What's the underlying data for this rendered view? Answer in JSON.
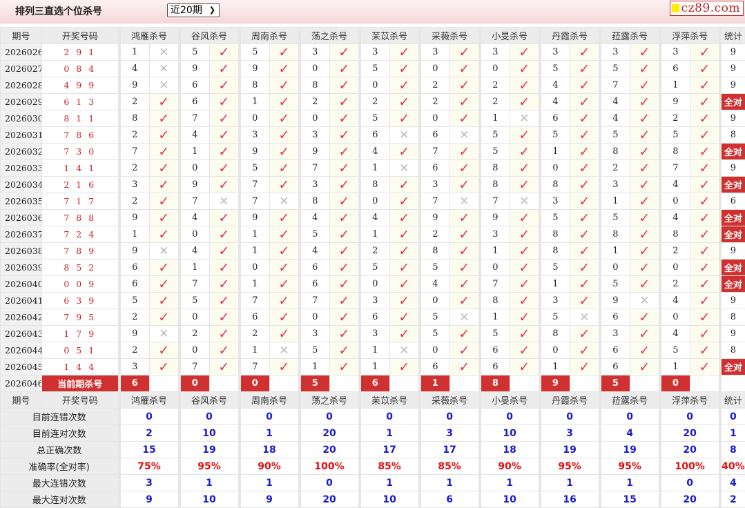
{
  "header": {
    "title": "排列三直选个位杀号",
    "period_select": "近20期",
    "logo": "cz89.com"
  },
  "columns": {
    "issue": "期号",
    "draw": "开奖号码",
    "predictors": [
      "鸿雁杀号",
      "谷风杀号",
      "周南杀号",
      "荡之杀号",
      "苿苡杀号",
      "采薇杀号",
      "小旻杀号",
      "丹霞杀号",
      "菈露杀号",
      "浮萍杀号"
    ],
    "stat": "统计"
  },
  "marks": {
    "hit": "✓",
    "miss": "✕",
    "hit_color": "#e8324a",
    "miss_color": "#bbbbbb"
  },
  "rows": [
    {
      "issue": "2026026",
      "draw": "2 9 1",
      "kills": [
        1,
        5,
        5,
        3,
        3,
        3,
        3,
        3,
        3,
        3
      ],
      "hits": "0111111111",
      "stat": "9"
    },
    {
      "issue": "2026027",
      "draw": "0 8 4",
      "kills": [
        4,
        9,
        9,
        0,
        5,
        0,
        0,
        5,
        5,
        6
      ],
      "hits": "0111111111",
      "stat": "9"
    },
    {
      "issue": "2026028",
      "draw": "4 9 9",
      "kills": [
        9,
        6,
        8,
        8,
        0,
        2,
        2,
        4,
        7,
        1
      ],
      "hits": "0111111111",
      "stat": "9"
    },
    {
      "issue": "2026029",
      "draw": "6 1 3",
      "kills": [
        2,
        6,
        1,
        2,
        2,
        2,
        2,
        4,
        4,
        9
      ],
      "hits": "1111111111",
      "stat": "全对"
    },
    {
      "issue": "2026030",
      "draw": "8 1 1",
      "kills": [
        8,
        7,
        0,
        0,
        5,
        0,
        1,
        6,
        4,
        2
      ],
      "hits": "1111110111",
      "stat": "9"
    },
    {
      "issue": "2026031",
      "draw": "7 8 6",
      "kills": [
        2,
        4,
        3,
        3,
        6,
        6,
        5,
        5,
        5,
        5
      ],
      "hits": "1111001111",
      "stat": "8"
    },
    {
      "issue": "2026032",
      "draw": "7 3 0",
      "kills": [
        7,
        1,
        9,
        9,
        4,
        7,
        5,
        1,
        8,
        8
      ],
      "hits": "1111111111",
      "stat": "全对"
    },
    {
      "issue": "2026033",
      "draw": "1 4 1",
      "kills": [
        2,
        0,
        5,
        7,
        1,
        6,
        8,
        0,
        2,
        7
      ],
      "hits": "1111011111",
      "stat": "9"
    },
    {
      "issue": "2026034",
      "draw": "2 1 6",
      "kills": [
        3,
        9,
        7,
        3,
        8,
        3,
        8,
        8,
        3,
        4
      ],
      "hits": "1111111111",
      "stat": "全对"
    },
    {
      "issue": "2026035",
      "draw": "7 1 7",
      "kills": [
        2,
        7,
        7,
        8,
        0,
        7,
        7,
        3,
        1,
        0
      ],
      "hits": "1001100111",
      "stat": "6"
    },
    {
      "issue": "2026036",
      "draw": "7 8 8",
      "kills": [
        9,
        4,
        9,
        4,
        4,
        9,
        9,
        5,
        5,
        4
      ],
      "hits": "1111111111",
      "stat": "全对"
    },
    {
      "issue": "2026037",
      "draw": "7 2 4",
      "kills": [
        1,
        0,
        1,
        5,
        1,
        2,
        3,
        8,
        8,
        8
      ],
      "hits": "1111111111",
      "stat": "全对"
    },
    {
      "issue": "2026038",
      "draw": "7 8 9",
      "kills": [
        9,
        4,
        1,
        4,
        2,
        8,
        1,
        8,
        1,
        2
      ],
      "hits": "0111111111",
      "stat": "9"
    },
    {
      "issue": "2026039",
      "draw": "8 5 2",
      "kills": [
        6,
        1,
        0,
        6,
        5,
        5,
        0,
        5,
        0,
        0
      ],
      "hits": "1111111111",
      "stat": "全对"
    },
    {
      "issue": "2026040",
      "draw": "0 0 9",
      "kills": [
        6,
        7,
        1,
        6,
        0,
        4,
        7,
        1,
        5,
        2
      ],
      "hits": "1111111111",
      "stat": "全对"
    },
    {
      "issue": "2026041",
      "draw": "6 3 9",
      "kills": [
        5,
        5,
        7,
        7,
        3,
        0,
        8,
        3,
        9,
        4
      ],
      "hits": "1111111101",
      "stat": "9"
    },
    {
      "issue": "2026042",
      "draw": "7 9 5",
      "kills": [
        2,
        0,
        6,
        0,
        6,
        5,
        1,
        5,
        6,
        0
      ],
      "hits": "1111101011",
      "stat": "8"
    },
    {
      "issue": "2026043",
      "draw": "1 7 9",
      "kills": [
        9,
        2,
        2,
        3,
        3,
        5,
        5,
        8,
        3,
        4
      ],
      "hits": "0111111111",
      "stat": "9"
    },
    {
      "issue": "2026044",
      "draw": "0 5 1",
      "kills": [
        2,
        0,
        1,
        5,
        1,
        0,
        6,
        0,
        6,
        5
      ],
      "hits": "1101011111",
      "stat": "8"
    },
    {
      "issue": "2026045",
      "draw": "1 4 4",
      "kills": [
        3,
        7,
        7,
        1,
        1,
        6,
        6,
        1,
        6,
        1
      ],
      "hits": "1111111111",
      "stat": "全对"
    }
  ],
  "current": {
    "issue": "2026046",
    "label": "当前期杀号",
    "kills": [
      6,
      0,
      0,
      5,
      6,
      1,
      8,
      9,
      5,
      0
    ]
  },
  "stats": [
    {
      "label": "目前连错次数",
      "values": [
        "0",
        "0",
        "0",
        "0",
        "0",
        "0",
        "0",
        "0",
        "0",
        "0",
        "0"
      ]
    },
    {
      "label": "目前连对次数",
      "values": [
        "2",
        "10",
        "1",
        "20",
        "1",
        "3",
        "10",
        "3",
        "4",
        "20",
        "1"
      ]
    },
    {
      "label": "总正确次数",
      "values": [
        "15",
        "19",
        "18",
        "20",
        "17",
        "17",
        "18",
        "19",
        "19",
        "20",
        "8"
      ]
    },
    {
      "label": "准确率(全对率)",
      "values": [
        "75%",
        "95%",
        "90%",
        "100%",
        "85%",
        "85%",
        "90%",
        "95%",
        "95%",
        "100%",
        "40%"
      ],
      "pct": true
    },
    {
      "label": "最大连错次数",
      "values": [
        "3",
        "1",
        "1",
        "0",
        "1",
        "1",
        "1",
        "1",
        "1",
        "0",
        "4"
      ]
    },
    {
      "label": "最大连对次数",
      "values": [
        "9",
        "10",
        "9",
        "20",
        "10",
        "6",
        "10",
        "16",
        "15",
        "20",
        "2"
      ]
    }
  ]
}
